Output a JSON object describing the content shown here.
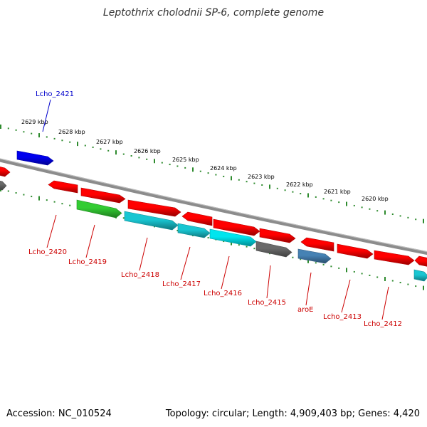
{
  "title": "Leptothrix cholodnii SP-6, complete genome",
  "footer": {
    "accession": "Accession: NC_010524",
    "summary": "Topology: circular; Length: 4,909,403 bp; Genes: 4,420"
  },
  "colors": {
    "backbone": "#8c8c8c",
    "tick": "#2e8b2e",
    "gene_red": "#ff0000",
    "gene_green": "#33cc33",
    "gene_cyan": "#19c6d2",
    "gene_cyan_bright": "#00e5ee",
    "gene_blue": "#0000ee",
    "gene_grey": "#6a6a6a",
    "gene_steel": "#4682b4",
    "label_red": "#cc0000",
    "label_blue": "#0000cc"
  },
  "scale_labels": [
    "2629 kbp",
    "2628 kbp",
    "2627 kbp",
    "2626 kbp",
    "2625 kbp",
    "2624 kbp",
    "2623 kbp",
    "2622 kbp",
    "2621 kbp",
    "2620 kbp"
  ],
  "gene_labels": [
    {
      "name": "Lcho_2421",
      "color": "blue"
    },
    {
      "name": "Lcho_2420",
      "color": "red"
    },
    {
      "name": "Lcho_2419",
      "color": "red"
    },
    {
      "name": "Lcho_2418",
      "color": "red"
    },
    {
      "name": "Lcho_2417",
      "color": "red"
    },
    {
      "name": "Lcho_2416",
      "color": "red"
    },
    {
      "name": "Lcho_2415",
      "color": "red"
    },
    {
      "name": "aroE",
      "color": "red"
    },
    {
      "name": "Lcho_2413",
      "color": "red"
    },
    {
      "name": "Lcho_2412",
      "color": "red"
    }
  ]
}
